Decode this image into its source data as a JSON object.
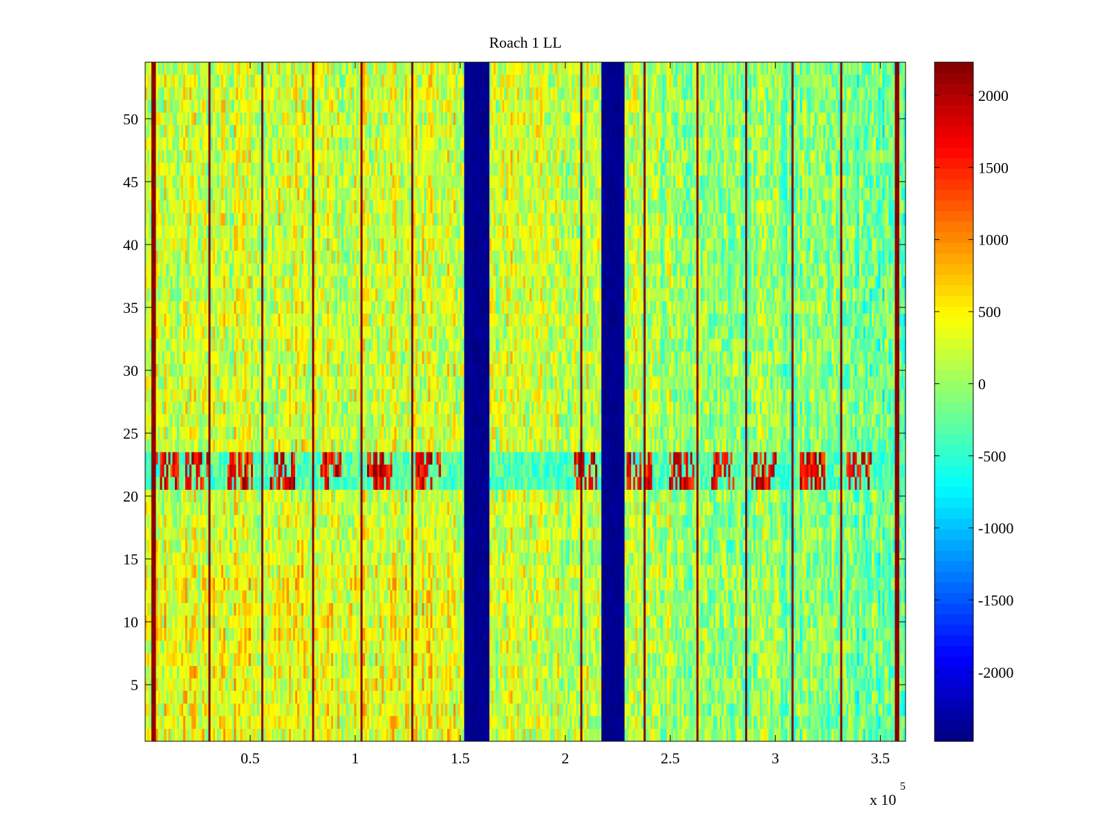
{
  "chart_data": {
    "type": "heatmap",
    "title": "Roach 1 LL",
    "xlabel": "",
    "ylabel": "",
    "x_multiplier_label": {
      "base": "x 10",
      "power": "5"
    },
    "xlim": [
      0,
      3.62
    ],
    "ylim": [
      0.5,
      54.5
    ],
    "x_ticks": [
      {
        "value": 0.5,
        "label": "0.5"
      },
      {
        "value": 1.0,
        "label": "1"
      },
      {
        "value": 1.5,
        "label": "1.5"
      },
      {
        "value": 2.0,
        "label": "2"
      },
      {
        "value": 2.5,
        "label": "2.5"
      },
      {
        "value": 3.0,
        "label": "3"
      },
      {
        "value": 3.5,
        "label": "3.5"
      }
    ],
    "y_ticks": [
      {
        "value": 5,
        "label": "5"
      },
      {
        "value": 10,
        "label": "10"
      },
      {
        "value": 15,
        "label": "15"
      },
      {
        "value": 20,
        "label": "20"
      },
      {
        "value": 25,
        "label": "25"
      },
      {
        "value": 30,
        "label": "30"
      },
      {
        "value": 35,
        "label": "35"
      },
      {
        "value": 40,
        "label": "40"
      },
      {
        "value": 45,
        "label": "45"
      },
      {
        "value": 50,
        "label": "50"
      }
    ],
    "colorbar": {
      "colormap": "jet",
      "range": [
        -2480,
        2230
      ],
      "ticks": [
        {
          "value": 2000,
          "label": "2000"
        },
        {
          "value": 1500,
          "label": "1500"
        },
        {
          "value": 1000,
          "label": "1000"
        },
        {
          "value": 500,
          "label": "500"
        },
        {
          "value": 0,
          "label": "0"
        },
        {
          "value": -500,
          "label": "-500"
        },
        {
          "value": -1000,
          "label": "-1000"
        },
        {
          "value": -1500,
          "label": "-1500"
        },
        {
          "value": -2000,
          "label": "-2000"
        }
      ]
    },
    "grid": false,
    "regions": {
      "background_value_left": 250,
      "background_value_right": -250,
      "gap_bands": [
        {
          "x_start": 1.52,
          "x_end": 1.64,
          "value": -2480
        },
        {
          "x_start": 2.17,
          "x_end": 2.28,
          "value": -2480
        }
      ],
      "spike_columns": [
        0.04,
        0.31,
        0.56,
        0.8,
        1.03,
        1.27,
        1.54,
        2.08,
        2.38,
        2.63,
        2.86,
        3.08,
        3.31,
        3.58
      ],
      "interference_rows": {
        "y_start": 20.5,
        "y_end": 23.5,
        "burst_value": 2000
      },
      "burst_clusters": [
        0.1,
        0.25,
        0.45,
        0.65,
        0.88,
        1.12,
        1.35,
        2.1,
        2.35,
        2.55,
        2.75,
        2.95,
        3.18,
        3.4
      ]
    }
  }
}
